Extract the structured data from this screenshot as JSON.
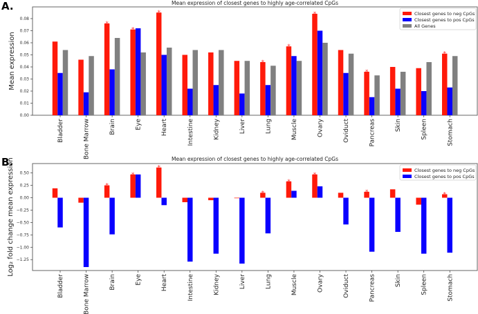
{
  "chart_data": [
    {
      "type": "bar",
      "panel_label": "A.",
      "title": "Mean expression of closest genes to highly age-correlated CpGs",
      "xlabel": "",
      "ylabel": "Mean expression",
      "ylim": [
        0,
        0.0897
      ],
      "yticks": [
        "0.00",
        "0.01",
        "0.02",
        "0.03",
        "0.04",
        "0.05",
        "0.06",
        "0.07",
        "0.08"
      ],
      "grid": false,
      "legend_position": "top-right",
      "categories": [
        "Bladder",
        "Bone Marrow",
        "Brain",
        "Eye",
        "Heart",
        "Intestine",
        "Kidney",
        "Liver",
        "Lung",
        "Muscle",
        "Ovary",
        "Oviduct",
        "Pancreas",
        "Skin",
        "Spleen",
        "Stomach"
      ],
      "series": [
        {
          "name": "Closest genes to neg CpGs",
          "color": "#ff1a0a",
          "values": [
            0.061,
            0.046,
            0.076,
            0.071,
            0.085,
            0.05,
            0.052,
            0.045,
            0.044,
            0.057,
            0.084,
            0.054,
            0.036,
            0.04,
            0.039,
            0.051
          ]
        },
        {
          "name": "Closest genes to pos CpGs",
          "color": "#0a00ff",
          "values": [
            0.035,
            0.019,
            0.038,
            0.072,
            0.05,
            0.022,
            0.025,
            0.018,
            0.025,
            0.049,
            0.07,
            0.035,
            0.015,
            0.022,
            0.02,
            0.023
          ]
        },
        {
          "name": "All Genes",
          "color": "#808080",
          "values": [
            0.054,
            0.049,
            0.064,
            0.052,
            0.056,
            0.054,
            0.054,
            0.045,
            0.041,
            0.045,
            0.06,
            0.051,
            0.033,
            0.036,
            0.044,
            0.049
          ]
        }
      ],
      "significance_marker": "*",
      "significant": [
        "Brain",
        "Eye",
        "Heart",
        "Lung",
        "Muscle",
        "Ovary",
        "Pancreas",
        "Stomach"
      ]
    },
    {
      "type": "bar",
      "panel_label": "B.",
      "title": "Mean expression of closest genes to highly age-correlated CpGs",
      "xlabel": "",
      "ylabel": "Log₂ fold change mean expression",
      "ylim": [
        -1.47,
        0.69
      ],
      "yticks": [
        "−1.25",
        "−1.00",
        "−0.75",
        "−0.50",
        "−0.25",
        "0.00",
        "0.25",
        "0.50"
      ],
      "grid": false,
      "legend_position": "top-right",
      "categories": [
        "Bladder",
        "Bone Marrow",
        "Brain",
        "Eye",
        "Heart",
        "Intestine",
        "Kidney",
        "Liver",
        "Lung",
        "Muscle",
        "Ovary",
        "Oviduct",
        "Pancreas",
        "Skin",
        "Spleen",
        "Stomach"
      ],
      "series": [
        {
          "name": "Closest genes to neg CpGs",
          "color": "#ff1a0a",
          "values": [
            0.19,
            -0.1,
            0.25,
            0.47,
            0.61,
            -0.09,
            -0.05,
            -0.01,
            0.1,
            0.33,
            0.47,
            0.1,
            0.12,
            0.17,
            -0.14,
            0.07
          ]
        },
        {
          "name": "Closest genes to pos CpGs",
          "color": "#0a00ff",
          "values": [
            -0.6,
            -1.4,
            -0.74,
            0.47,
            -0.15,
            -1.29,
            -1.13,
            -1.33,
            -0.72,
            0.14,
            0.23,
            -0.54,
            -1.09,
            -0.69,
            -1.13,
            -1.11
          ]
        }
      ],
      "significance_marker": "*",
      "significant": [
        "Brain",
        "Eye",
        "Heart",
        "Lung",
        "Muscle",
        "Ovary",
        "Pancreas",
        "Stomach"
      ]
    }
  ]
}
